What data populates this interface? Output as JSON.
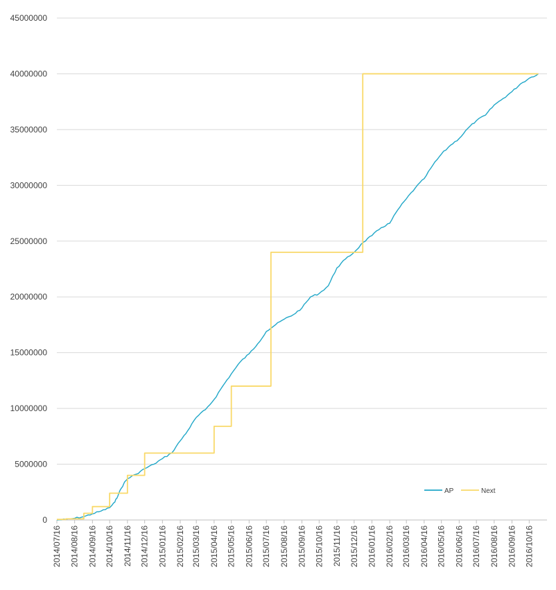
{
  "chart_data": {
    "type": "line",
    "title": "",
    "xlabel": "",
    "ylabel": "",
    "ylim": [
      0,
      45000000
    ],
    "y_ticks": [
      "0",
      "5000000",
      "10000000",
      "15000000",
      "20000000",
      "25000000",
      "30000000",
      "35000000",
      "40000000",
      "45000000"
    ],
    "x_tick_labels": [
      "2014/07/16",
      "2014/08/16",
      "2014/09/16",
      "2014/10/16",
      "2014/11/16",
      "2014/12/16",
      "2015/01/16",
      "2015/02/16",
      "2015/03/16",
      "2015/04/16",
      "2015/05/16",
      "2015/06/16",
      "2015/07/16",
      "2015/08/16",
      "2015/09/16",
      "2015/10/16",
      "2015/11/16",
      "2015/12/16",
      "2016/01/16",
      "2016/02/16",
      "2016/03/16",
      "2016/04/16",
      "2016/05/16",
      "2016/06/16",
      "2016/07/16",
      "2016/08/16",
      "2016/09/16",
      "2016/10/16"
    ],
    "x_range": [
      "2014/07/16",
      "2016/11/16"
    ],
    "grid": "horizontal",
    "legend_position": "bottom-right",
    "series": [
      {
        "name": "AP",
        "color": "#21a7c8",
        "step": false,
        "points": [
          [
            "2014/07/16",
            0
          ],
          [
            "2014/08/01",
            50000
          ],
          [
            "2014/08/16",
            150000
          ],
          [
            "2014/09/01",
            300000
          ],
          [
            "2014/09/16",
            550000
          ],
          [
            "2014/10/01",
            800000
          ],
          [
            "2014/10/16",
            1100000
          ],
          [
            "2014/10/25",
            1600000
          ],
          [
            "2014/11/01",
            2400000
          ],
          [
            "2014/11/10",
            3300000
          ],
          [
            "2014/11/16",
            3700000
          ],
          [
            "2014/12/01",
            4100000
          ],
          [
            "2014/12/16",
            4600000
          ],
          [
            "2015/01/01",
            5000000
          ],
          [
            "2015/01/16",
            5500000
          ],
          [
            "2015/02/01",
            6000000
          ],
          [
            "2015/02/16",
            7100000
          ],
          [
            "2015/03/01",
            8000000
          ],
          [
            "2015/03/16",
            9200000
          ],
          [
            "2015/04/01",
            9900000
          ],
          [
            "2015/04/16",
            10800000
          ],
          [
            "2015/05/01",
            12000000
          ],
          [
            "2015/05/16",
            13100000
          ],
          [
            "2015/06/01",
            14200000
          ],
          [
            "2015/06/16",
            14900000
          ],
          [
            "2015/07/01",
            15800000
          ],
          [
            "2015/07/16",
            16900000
          ],
          [
            "2015/08/01",
            17500000
          ],
          [
            "2015/08/16",
            18000000
          ],
          [
            "2015/09/01",
            18400000
          ],
          [
            "2015/09/16",
            19000000
          ],
          [
            "2015/10/01",
            20000000
          ],
          [
            "2015/10/16",
            20300000
          ],
          [
            "2015/11/01",
            21000000
          ],
          [
            "2015/11/16",
            22600000
          ],
          [
            "2015/12/01",
            23400000
          ],
          [
            "2015/12/16",
            24000000
          ],
          [
            "2016/01/01",
            24900000
          ],
          [
            "2016/01/16",
            25500000
          ],
          [
            "2016/02/01",
            26200000
          ],
          [
            "2016/02/16",
            26600000
          ],
          [
            "2016/03/01",
            27800000
          ],
          [
            "2016/03/16",
            28800000
          ],
          [
            "2016/04/01",
            29800000
          ],
          [
            "2016/04/16",
            30600000
          ],
          [
            "2016/05/01",
            31800000
          ],
          [
            "2016/05/16",
            32800000
          ],
          [
            "2016/06/01",
            33600000
          ],
          [
            "2016/06/16",
            34200000
          ],
          [
            "2016/07/01",
            35100000
          ],
          [
            "2016/07/16",
            35800000
          ],
          [
            "2016/08/01",
            36300000
          ],
          [
            "2016/08/16",
            37200000
          ],
          [
            "2016/09/01",
            37800000
          ],
          [
            "2016/09/16",
            38400000
          ],
          [
            "2016/10/01",
            39100000
          ],
          [
            "2016/10/16",
            39600000
          ],
          [
            "2016/11/01",
            40000000
          ]
        ]
      },
      {
        "name": "Next",
        "color": "#f9d96a",
        "step": true,
        "points": [
          [
            "2014/07/16",
            50000
          ],
          [
            "2014/08/01",
            100000
          ],
          [
            "2014/09/01",
            600000
          ],
          [
            "2014/09/16",
            1200000
          ],
          [
            "2014/10/16",
            2400000
          ],
          [
            "2014/11/16",
            4000000
          ],
          [
            "2014/12/16",
            6000000
          ],
          [
            "2015/04/16",
            8400000
          ],
          [
            "2015/05/16",
            12000000
          ],
          [
            "2015/07/24",
            24000000
          ],
          [
            "2015/12/31",
            40000000
          ],
          [
            "2016/11/01",
            40000000
          ]
        ]
      }
    ]
  }
}
